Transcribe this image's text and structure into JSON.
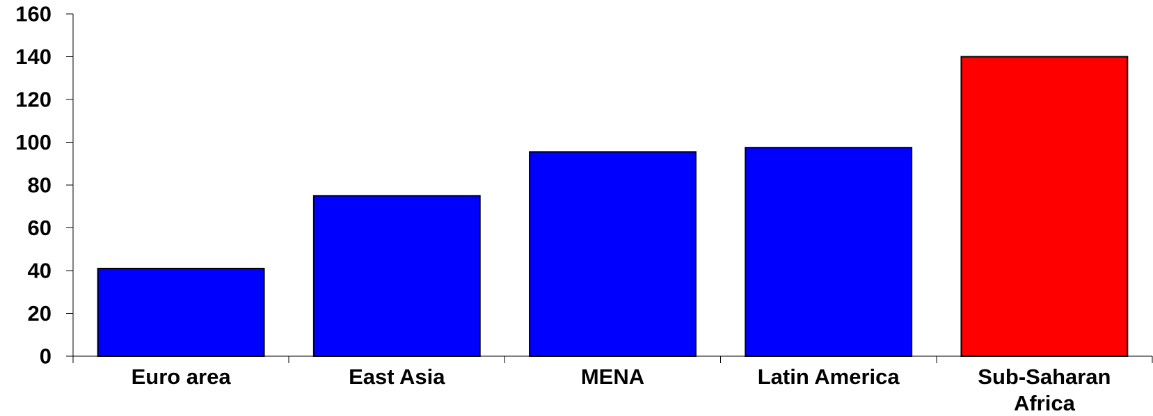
{
  "chart_data": {
    "type": "bar",
    "title": "",
    "xlabel": "",
    "ylabel": "",
    "categories": [
      [
        "Euro area"
      ],
      [
        "East Asia"
      ],
      [
        "MENA"
      ],
      [
        "Latin America"
      ],
      [
        "Sub-Saharan",
        "Africa"
      ]
    ],
    "values": [
      41,
      75,
      95.5,
      97.5,
      140
    ],
    "bar_colors": [
      "#0000ff",
      "#0000ff",
      "#0000ff",
      "#0000ff",
      "#ff0000"
    ],
    "bar_outline_color": "#000000",
    "ylim": [
      0,
      160
    ],
    "yticks": [
      0,
      20,
      40,
      60,
      80,
      100,
      120,
      140,
      160
    ],
    "grid": false,
    "legend": "none"
  }
}
